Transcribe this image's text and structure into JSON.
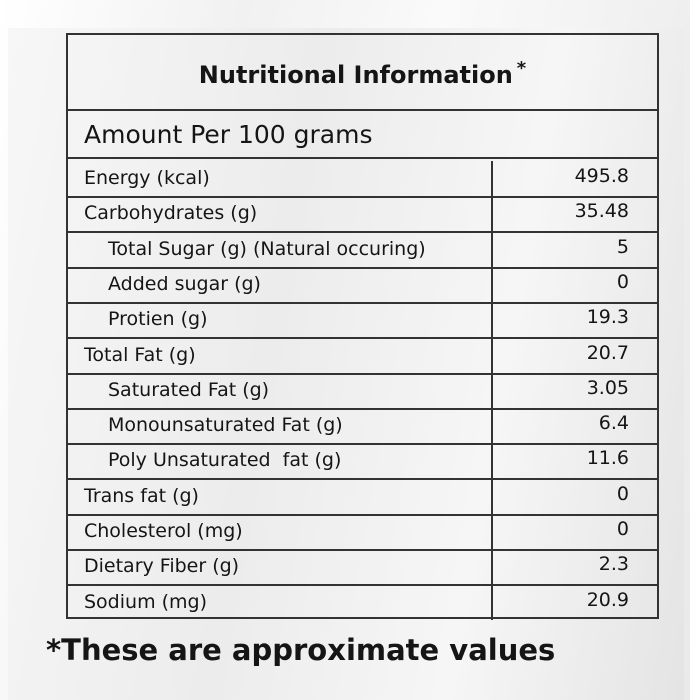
{
  "label": {
    "title": "Nutritional Information",
    "title_mark": "*",
    "serving": "Amount Per 100 grams",
    "rows": [
      {
        "name": "Energy (kcal)",
        "value": "495.8",
        "indent": false
      },
      {
        "name": "Carbohydrates (g)",
        "value": "35.48",
        "indent": false
      },
      {
        "name": "Total Sugar (g) (Natural occuring)",
        "value": "5",
        "indent": true
      },
      {
        "name": "Added sugar (g)",
        "value": "0",
        "indent": true
      },
      {
        "name": "Protien (g)",
        "value": "19.3",
        "indent": true
      },
      {
        "name": "Total Fat (g)",
        "value": "20.7",
        "indent": false
      },
      {
        "name": "Saturated Fat (g)",
        "value": "3.05",
        "indent": true
      },
      {
        "name": "Monounsaturated Fat (g)",
        "value": "6.4",
        "indent": true
      },
      {
        "name": "Poly Unsaturated  fat (g)",
        "value": "11.6",
        "indent": true
      },
      {
        "name": "Trans fat (g)",
        "value": "0",
        "indent": false
      },
      {
        "name": "Cholesterol (mg)",
        "value": "0",
        "indent": false
      },
      {
        "name": "Dietary Fiber (g)",
        "value": "2.3",
        "indent": false
      },
      {
        "name": "Sodium (mg)",
        "value": "20.9",
        "indent": false
      }
    ],
    "footnote": "*These are approximate values"
  }
}
